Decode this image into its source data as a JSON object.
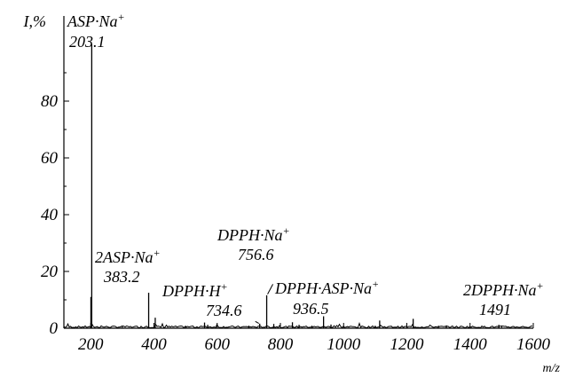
{
  "chart_data": {
    "type": "line",
    "title": "",
    "xlabel": "m/z",
    "ylabel": "I,%",
    "xlim": [
      115,
      1600
    ],
    "ylim": [
      0,
      100
    ],
    "x_ticks": [
      200,
      400,
      600,
      800,
      1000,
      1200,
      1400,
      1600
    ],
    "y_ticks": [
      0,
      20,
      40,
      60,
      80
    ],
    "grid": false,
    "legend": "none",
    "line_color": "#000000",
    "peaks": [
      {
        "x": 203.1,
        "y": 100
      },
      {
        "x": 200.5,
        "y": 11
      },
      {
        "x": 383.2,
        "y": 12.5
      },
      {
        "x": 404,
        "y": 3.7
      },
      {
        "x": 560,
        "y": 2
      },
      {
        "x": 570,
        "y": 1.2
      },
      {
        "x": 734.6,
        "y": 1.6
      },
      {
        "x": 756.6,
        "y": 11.6
      },
      {
        "x": 779,
        "y": 1.5
      },
      {
        "x": 838,
        "y": 2.1
      },
      {
        "x": 859,
        "y": 1.2
      },
      {
        "x": 936.5,
        "y": 4.2
      },
      {
        "x": 960,
        "y": 1.3
      },
      {
        "x": 1114,
        "y": 2.7
      },
      {
        "x": 1220,
        "y": 3.3
      },
      {
        "x": 1325,
        "y": 1
      },
      {
        "x": 1491,
        "y": 1.2
      }
    ],
    "annotations": [
      {
        "name": "ASP·Na",
        "sup": "+",
        "value": "203.1"
      },
      {
        "name": "2ASP·Na",
        "sup": "+",
        "value": "383.2"
      },
      {
        "name": "DPPH·H",
        "sup": "+",
        "value": "734.6"
      },
      {
        "name": "DPPH·Na",
        "sup": "+",
        "value": "756.6"
      },
      {
        "name": "DPPH·ASP·Na",
        "sup": "+",
        "value": "936.5"
      },
      {
        "name": "2DPPH·Na",
        "sup": "+",
        "value": "1491"
      }
    ]
  }
}
